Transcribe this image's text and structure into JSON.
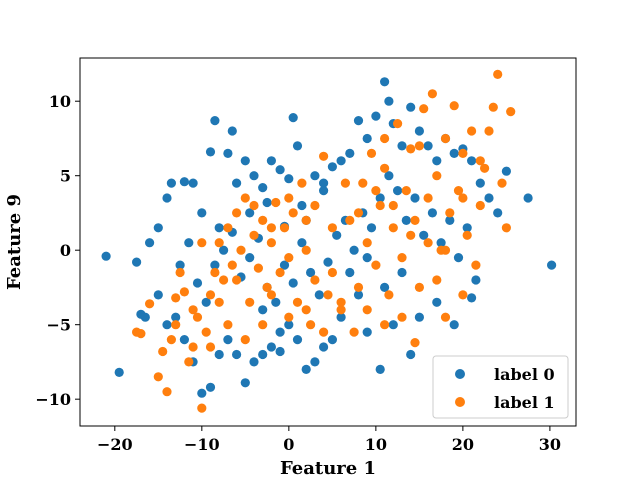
{
  "chart_data": {
    "type": "scatter",
    "title": "",
    "xlabel": "Feature 1",
    "ylabel": "Feature 9",
    "xlim": [
      -24,
      33
    ],
    "ylim": [
      -11.8,
      12.9
    ],
    "xticks": [
      -20,
      -10,
      0,
      10,
      20,
      30
    ],
    "yticks": [
      -10,
      -5,
      0,
      5,
      10
    ],
    "xtick_labels": [
      "−20",
      "−10",
      "0",
      "10",
      "20",
      "30"
    ],
    "ytick_labels": [
      "−10",
      "−5",
      "0",
      "5",
      "10"
    ],
    "grid": false,
    "legend_position": "lower-right",
    "series": [
      {
        "name": "label 0",
        "color": "#1f77b4",
        "points": [
          [
            -21,
            -0.4
          ],
          [
            -19.5,
            -8.2
          ],
          [
            -17.5,
            -0.8
          ],
          [
            -16,
            0.5
          ],
          [
            -15,
            1.5
          ],
          [
            -14,
            3.5
          ],
          [
            -13.5,
            4.5
          ],
          [
            -12,
            4.6
          ],
          [
            -11,
            4.5
          ],
          [
            -10,
            2.5
          ],
          [
            -9,
            6.6
          ],
          [
            -8.5,
            8.7
          ],
          [
            -7,
            6.5
          ],
          [
            -6.5,
            8
          ],
          [
            -6,
            4.5
          ],
          [
            -5,
            6
          ],
          [
            -4.5,
            2.5
          ],
          [
            -4,
            5
          ],
          [
            -3,
            4.2
          ],
          [
            -2.5,
            3.2
          ],
          [
            -2,
            6
          ],
          [
            -1,
            5.4
          ],
          [
            -0.5,
            1.6
          ],
          [
            0,
            4.8
          ],
          [
            0.5,
            8.9
          ],
          [
            1,
            7
          ],
          [
            1.5,
            3
          ],
          [
            2,
            2
          ],
          [
            3,
            5
          ],
          [
            4,
            4.5
          ],
          [
            5,
            5.6
          ],
          [
            6,
            6
          ],
          [
            7,
            6.5
          ],
          [
            8,
            8.7
          ],
          [
            9,
            7.5
          ],
          [
            10,
            9
          ],
          [
            11,
            11.3
          ],
          [
            11.5,
            10
          ],
          [
            12,
            8.5
          ],
          [
            13,
            7
          ],
          [
            14,
            9.6
          ],
          [
            15,
            8
          ],
          [
            16,
            7
          ],
          [
            17,
            6
          ],
          [
            18,
            7.5
          ],
          [
            19,
            6.5
          ],
          [
            20,
            6.8
          ],
          [
            21,
            6
          ],
          [
            22,
            4.5
          ],
          [
            23,
            3.5
          ],
          [
            24,
            2.5
          ],
          [
            25,
            5.3
          ],
          [
            27.5,
            3.5
          ],
          [
            30.2,
            -1
          ],
          [
            21,
            -3.2
          ],
          [
            19,
            -5
          ],
          [
            17,
            -3.5
          ],
          [
            15,
            -4.5
          ],
          [
            14,
            -7
          ],
          [
            12,
            -5
          ],
          [
            10.5,
            -8
          ],
          [
            9,
            -5.5
          ],
          [
            8,
            -3
          ],
          [
            6,
            -4.5
          ],
          [
            5,
            -6
          ],
          [
            4,
            -6.5
          ],
          [
            3,
            -7.5
          ],
          [
            2,
            -8
          ],
          [
            1,
            -6
          ],
          [
            0,
            -5
          ],
          [
            -1,
            -5.5
          ],
          [
            -2,
            -6.5
          ],
          [
            -3,
            -7
          ],
          [
            -4,
            -7.5
          ],
          [
            -5,
            -8.9
          ],
          [
            -6,
            -7
          ],
          [
            -7,
            -6
          ],
          [
            -8,
            -7
          ],
          [
            -9,
            -9.2
          ],
          [
            -10,
            -9.6
          ],
          [
            -11,
            -7.5
          ],
          [
            -12,
            -6
          ],
          [
            -13,
            -4.5
          ],
          [
            -14,
            -5
          ],
          [
            -15,
            -3
          ],
          [
            -12.5,
            -1
          ],
          [
            -11.5,
            0.5
          ],
          [
            -10.5,
            -2.2
          ],
          [
            -9.5,
            -3.5
          ],
          [
            -8.5,
            -1
          ],
          [
            -7.5,
            0
          ],
          [
            -6.5,
            1.2
          ],
          [
            -5.5,
            -1.8
          ],
          [
            -4.5,
            -0.5
          ],
          [
            -3.5,
            0.8
          ],
          [
            -2.5,
            -2.5
          ],
          [
            -1.5,
            -3.5
          ],
          [
            -0.5,
            -1
          ],
          [
            0.5,
            -2.2
          ],
          [
            1.5,
            0.5
          ],
          [
            2.5,
            -1.5
          ],
          [
            3.5,
            -3
          ],
          [
            4.5,
            -0.8
          ],
          [
            5.5,
            1
          ],
          [
            6.5,
            2
          ],
          [
            7.5,
            0
          ],
          [
            8.5,
            2.5
          ],
          [
            9.5,
            1.5
          ],
          [
            10.5,
            3.5
          ],
          [
            11.5,
            5
          ],
          [
            12.5,
            4
          ],
          [
            13.5,
            2
          ],
          [
            14.5,
            3.5
          ],
          [
            15.5,
            1
          ],
          [
            16.5,
            2.5
          ],
          [
            17.5,
            0.5
          ],
          [
            18.5,
            2
          ],
          [
            19.5,
            -0.5
          ],
          [
            20.5,
            1.5
          ],
          [
            21.5,
            -2
          ],
          [
            13,
            -1.5
          ],
          [
            11,
            -2.5
          ],
          [
            9,
            -0.5
          ],
          [
            7,
            -1.5
          ],
          [
            -16.5,
            -4.5
          ],
          [
            -17,
            -4.3
          ],
          [
            -3,
            -4
          ],
          [
            -1,
            -6.8
          ],
          [
            4,
            4
          ],
          [
            -8,
            1.5
          ]
        ]
      },
      {
        "name": "label 1",
        "color": "#ff7f0e",
        "points": [
          [
            -17.5,
            -5.5
          ],
          [
            -17,
            -5.6
          ],
          [
            -16,
            -3.6
          ],
          [
            -15,
            -8.5
          ],
          [
            -14.5,
            -6.8
          ],
          [
            -14,
            -9.5
          ],
          [
            -13.5,
            -6
          ],
          [
            -13,
            -3.2
          ],
          [
            -12.5,
            -1.5
          ],
          [
            -12,
            -2.8
          ],
          [
            -11.5,
            -7.5
          ],
          [
            -11,
            -6.5
          ],
          [
            -10.5,
            -4.5
          ],
          [
            -10,
            -10.6
          ],
          [
            -9.5,
            -5.5
          ],
          [
            -9,
            -3
          ],
          [
            -8.5,
            -1.5
          ],
          [
            -8,
            0.5
          ],
          [
            -7.5,
            -2
          ],
          [
            -7,
            1.5
          ],
          [
            -6.5,
            -1
          ],
          [
            -6,
            2.5
          ],
          [
            -5.5,
            0
          ],
          [
            -5,
            3.5
          ],
          [
            -4.5,
            -3.5
          ],
          [
            -4,
            1
          ],
          [
            -3.5,
            -1.2
          ],
          [
            -3,
            2
          ],
          [
            -2.5,
            -2.5
          ],
          [
            -2,
            0.5
          ],
          [
            -1.5,
            3.2
          ],
          [
            -1,
            -1.5
          ],
          [
            -0.5,
            1.5
          ],
          [
            0,
            -0.5
          ],
          [
            0.5,
            2.5
          ],
          [
            1,
            -3.5
          ],
          [
            1.5,
            4.5
          ],
          [
            2,
            0
          ],
          [
            2.5,
            -5
          ],
          [
            3,
            3
          ],
          [
            4,
            6.3
          ],
          [
            4.5,
            -3
          ],
          [
            5,
            1.5
          ],
          [
            6,
            -4
          ],
          [
            7,
            2
          ],
          [
            8,
            -2.5
          ],
          [
            8.5,
            4.5
          ],
          [
            9,
            0.5
          ],
          [
            9.5,
            6.5
          ],
          [
            10,
            -1
          ],
          [
            10.5,
            3
          ],
          [
            11,
            5.5
          ],
          [
            11.5,
            -3
          ],
          [
            12,
            1.5
          ],
          [
            12.5,
            8.5
          ],
          [
            13,
            -0.5
          ],
          [
            13.5,
            4
          ],
          [
            14,
            6.8
          ],
          [
            14.5,
            2
          ],
          [
            15,
            -2.5
          ],
          [
            15.5,
            9.5
          ],
          [
            16,
            3.5
          ],
          [
            16.5,
            10.5
          ],
          [
            17,
            5
          ],
          [
            17.5,
            0
          ],
          [
            18,
            7.5
          ],
          [
            18.5,
            2.5
          ],
          [
            19,
            9.7
          ],
          [
            19.5,
            4
          ],
          [
            20,
            6.5
          ],
          [
            20.5,
            1
          ],
          [
            21,
            8
          ],
          [
            21.5,
            -1
          ],
          [
            22,
            3
          ],
          [
            22.5,
            5.5
          ],
          [
            23,
            8
          ],
          [
            23.5,
            9.6
          ],
          [
            24,
            11.8
          ],
          [
            24.5,
            4.5
          ],
          [
            25,
            1.5
          ],
          [
            25.5,
            9.3
          ],
          [
            20,
            -3
          ],
          [
            18,
            -4.5
          ],
          [
            17,
            -2
          ],
          [
            14.5,
            -6.2
          ],
          [
            13,
            -4.5
          ],
          [
            11,
            -5
          ],
          [
            9,
            -4
          ],
          [
            7.5,
            -5.5
          ],
          [
            6,
            -3.5
          ],
          [
            4,
            -5.5
          ],
          [
            2,
            -4
          ],
          [
            0,
            -4.5
          ],
          [
            -2,
            -3
          ],
          [
            -3,
            -5
          ],
          [
            -5,
            -6
          ],
          [
            -7,
            -5
          ],
          [
            -9,
            -6.5
          ],
          [
            -11,
            -4
          ],
          [
            -13,
            -5
          ],
          [
            -10,
            0.5
          ],
          [
            -8,
            -3.5
          ],
          [
            -6,
            -2
          ],
          [
            -4,
            3
          ],
          [
            -2,
            1.5
          ],
          [
            0,
            3.5
          ],
          [
            2,
            2
          ],
          [
            3,
            -2
          ],
          [
            5,
            -1.5
          ],
          [
            6.5,
            4.5
          ],
          [
            8,
            2.5
          ],
          [
            10,
            4
          ],
          [
            12,
            3
          ],
          [
            14,
            1
          ],
          [
            16,
            0.5
          ],
          [
            18,
            0
          ],
          [
            20,
            3.5
          ],
          [
            22,
            6
          ],
          [
            15,
            7
          ],
          [
            11,
            7.5
          ]
        ]
      }
    ]
  }
}
